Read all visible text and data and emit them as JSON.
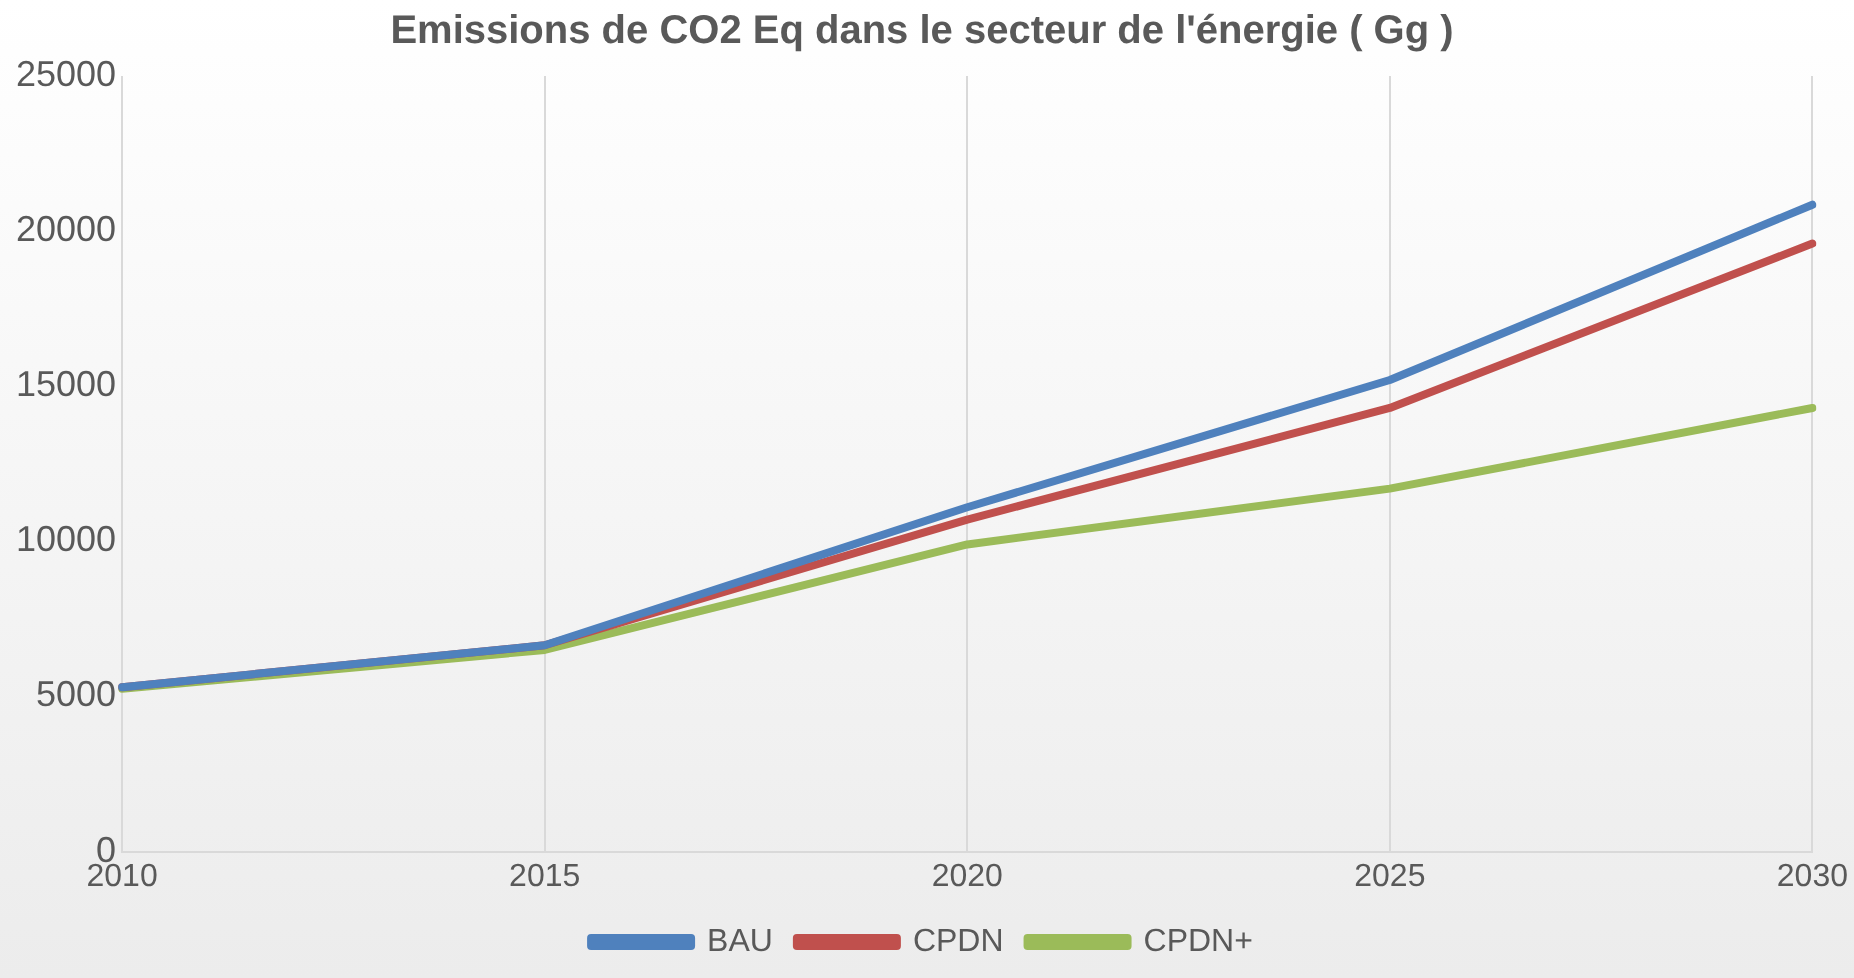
{
  "chart_data": {
    "type": "line",
    "title": "Emissions de CO2 Eq dans le secteur de l'énergie ( Gg )",
    "categories": [
      "2010",
      "2015",
      "2020",
      "2025",
      "2030"
    ],
    "series": [
      {
        "name": "BAU",
        "color": "#4f81bd",
        "values": [
          5300,
          6650,
          11100,
          15200,
          20850
        ]
      },
      {
        "name": "CPDN",
        "color": "#c0504d",
        "values": [
          5300,
          6650,
          10700,
          14300,
          19600
        ]
      },
      {
        "name": "CPDN+",
        "color": "#9bbb59",
        "values": [
          5250,
          6500,
          9900,
          11700,
          14300
        ]
      }
    ],
    "ylim": [
      0,
      25000
    ],
    "yticks": [
      0,
      5000,
      10000,
      15000,
      20000,
      25000
    ],
    "grid": "x",
    "legend": "bottom",
    "marker": "none",
    "line_style": "solid"
  }
}
